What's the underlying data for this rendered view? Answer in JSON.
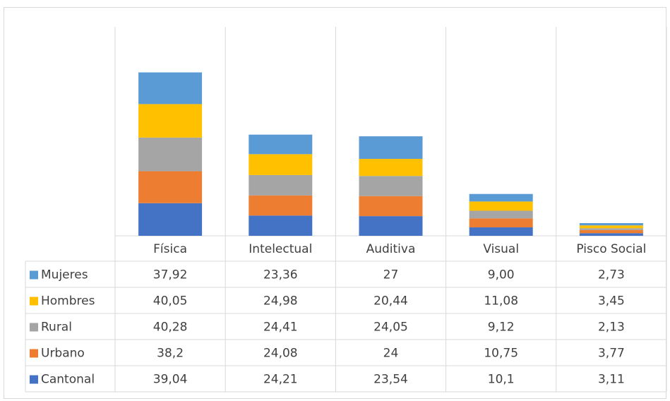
{
  "chart_data": {
    "type": "bar",
    "stacked": true,
    "categories": [
      "Física",
      "Intelectual",
      "Auditiva",
      "Visual",
      "Pisco Social"
    ],
    "series": [
      {
        "name": "Mujeres",
        "color": "#5b9bd5",
        "values": [
          37.92,
          23.36,
          27,
          9.0,
          2.73
        ],
        "value_labels": [
          "37,92",
          "23,36",
          "27",
          "9,00",
          "2,73"
        ]
      },
      {
        "name": "Hombres",
        "color": "#ffc000",
        "values": [
          40.05,
          24.98,
          20.44,
          11.08,
          3.45
        ],
        "value_labels": [
          "40,05",
          "24,98",
          "20,44",
          "11,08",
          "3,45"
        ]
      },
      {
        "name": "Rural",
        "color": "#a5a5a5",
        "values": [
          40.28,
          24.41,
          24.05,
          9.12,
          2.13
        ],
        "value_labels": [
          "40,28",
          "24,41",
          "24,05",
          "9,12",
          "2,13"
        ]
      },
      {
        "name": "Urbano",
        "color": "#ed7d31",
        "values": [
          38.2,
          24.08,
          24,
          10.75,
          3.77
        ],
        "value_labels": [
          "38,2",
          "24,08",
          "24",
          "10,75",
          "3,77"
        ]
      },
      {
        "name": "Cantonal",
        "color": "#4472c4",
        "values": [
          39.04,
          24.21,
          23.54,
          10.1,
          3.11
        ],
        "value_labels": [
          "39,04",
          "24,21",
          "23,54",
          "10,1",
          "3,11"
        ]
      }
    ],
    "ylim": [
      0,
      250
    ],
    "grid": true,
    "data_table": true
  }
}
